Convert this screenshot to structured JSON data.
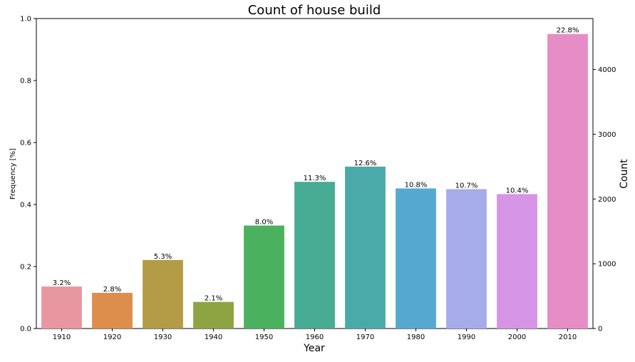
{
  "chart_data": {
    "type": "bar",
    "title": "Count of house build",
    "xlabel": "Year",
    "ylabel_left": "Frequency [%]",
    "ylabel_right": "Count",
    "categories": [
      "1910",
      "1920",
      "1930",
      "1940",
      "1950",
      "1960",
      "1970",
      "1980",
      "1990",
      "2000",
      "2010"
    ],
    "counts": [
      648,
      551,
      1058,
      411,
      1590,
      2265,
      2500,
      2163,
      2152,
      2076,
      4548
    ],
    "frequency_labels": [
      "3.2%",
      "2.8%",
      "5.3%",
      "2.1%",
      "8.0%",
      "11.3%",
      "12.6%",
      "10.8%",
      "10.7%",
      "10.4%",
      "22.8%"
    ],
    "colors": [
      "#e8969f",
      "#dd8d4c",
      "#b39c45",
      "#8ea443",
      "#4ab25f",
      "#48ab93",
      "#4aaaa9",
      "#55a9d1",
      "#a6acea",
      "#d694e6",
      "#e68dc6"
    ],
    "ylim_left": [
      0,
      1.0
    ],
    "ylim_right": [
      0,
      4787
    ],
    "yticks_left": [
      "0.0",
      "0.2",
      "0.4",
      "0.6",
      "0.8",
      "1.0"
    ],
    "yticks_right": [
      "0",
      "1000",
      "2000",
      "3000",
      "4000"
    ],
    "grid": false,
    "legend": "none"
  }
}
